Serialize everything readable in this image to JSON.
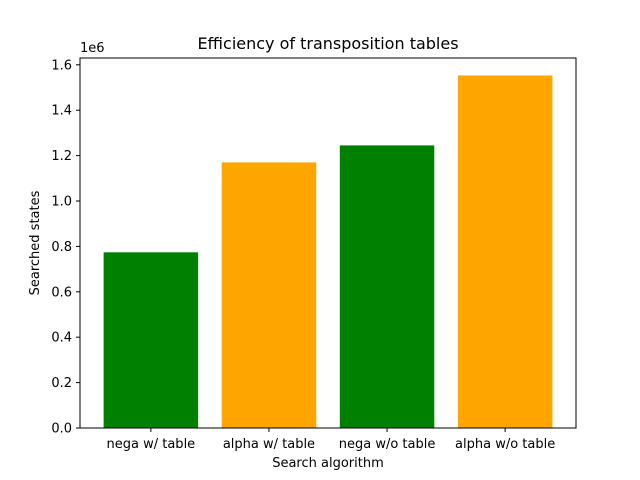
{
  "chart_data": {
    "type": "bar",
    "title": "Efficiency of transposition tables",
    "xlabel": "Search algorithm",
    "ylabel": "Searched states",
    "y_offset_label": "1e6",
    "categories": [
      "nega w/ table",
      "alpha w/ table",
      "nega w/o table",
      "alpha w/o table"
    ],
    "values": [
      774000,
      1170000,
      1245000,
      1553000
    ],
    "colors": [
      "#008000",
      "#FFA500",
      "#008000",
      "#FFA500"
    ],
    "ylim": [
      0,
      1630000
    ],
    "yticks": [
      0,
      200000,
      400000,
      600000,
      800000,
      1000000,
      1200000,
      1400000,
      1600000
    ],
    "ytick_labels": [
      "0.0",
      "0.2",
      "0.4",
      "0.6",
      "0.8",
      "1.0",
      "1.2",
      "1.4",
      "1.6"
    ],
    "grid": false,
    "legend": "none"
  }
}
